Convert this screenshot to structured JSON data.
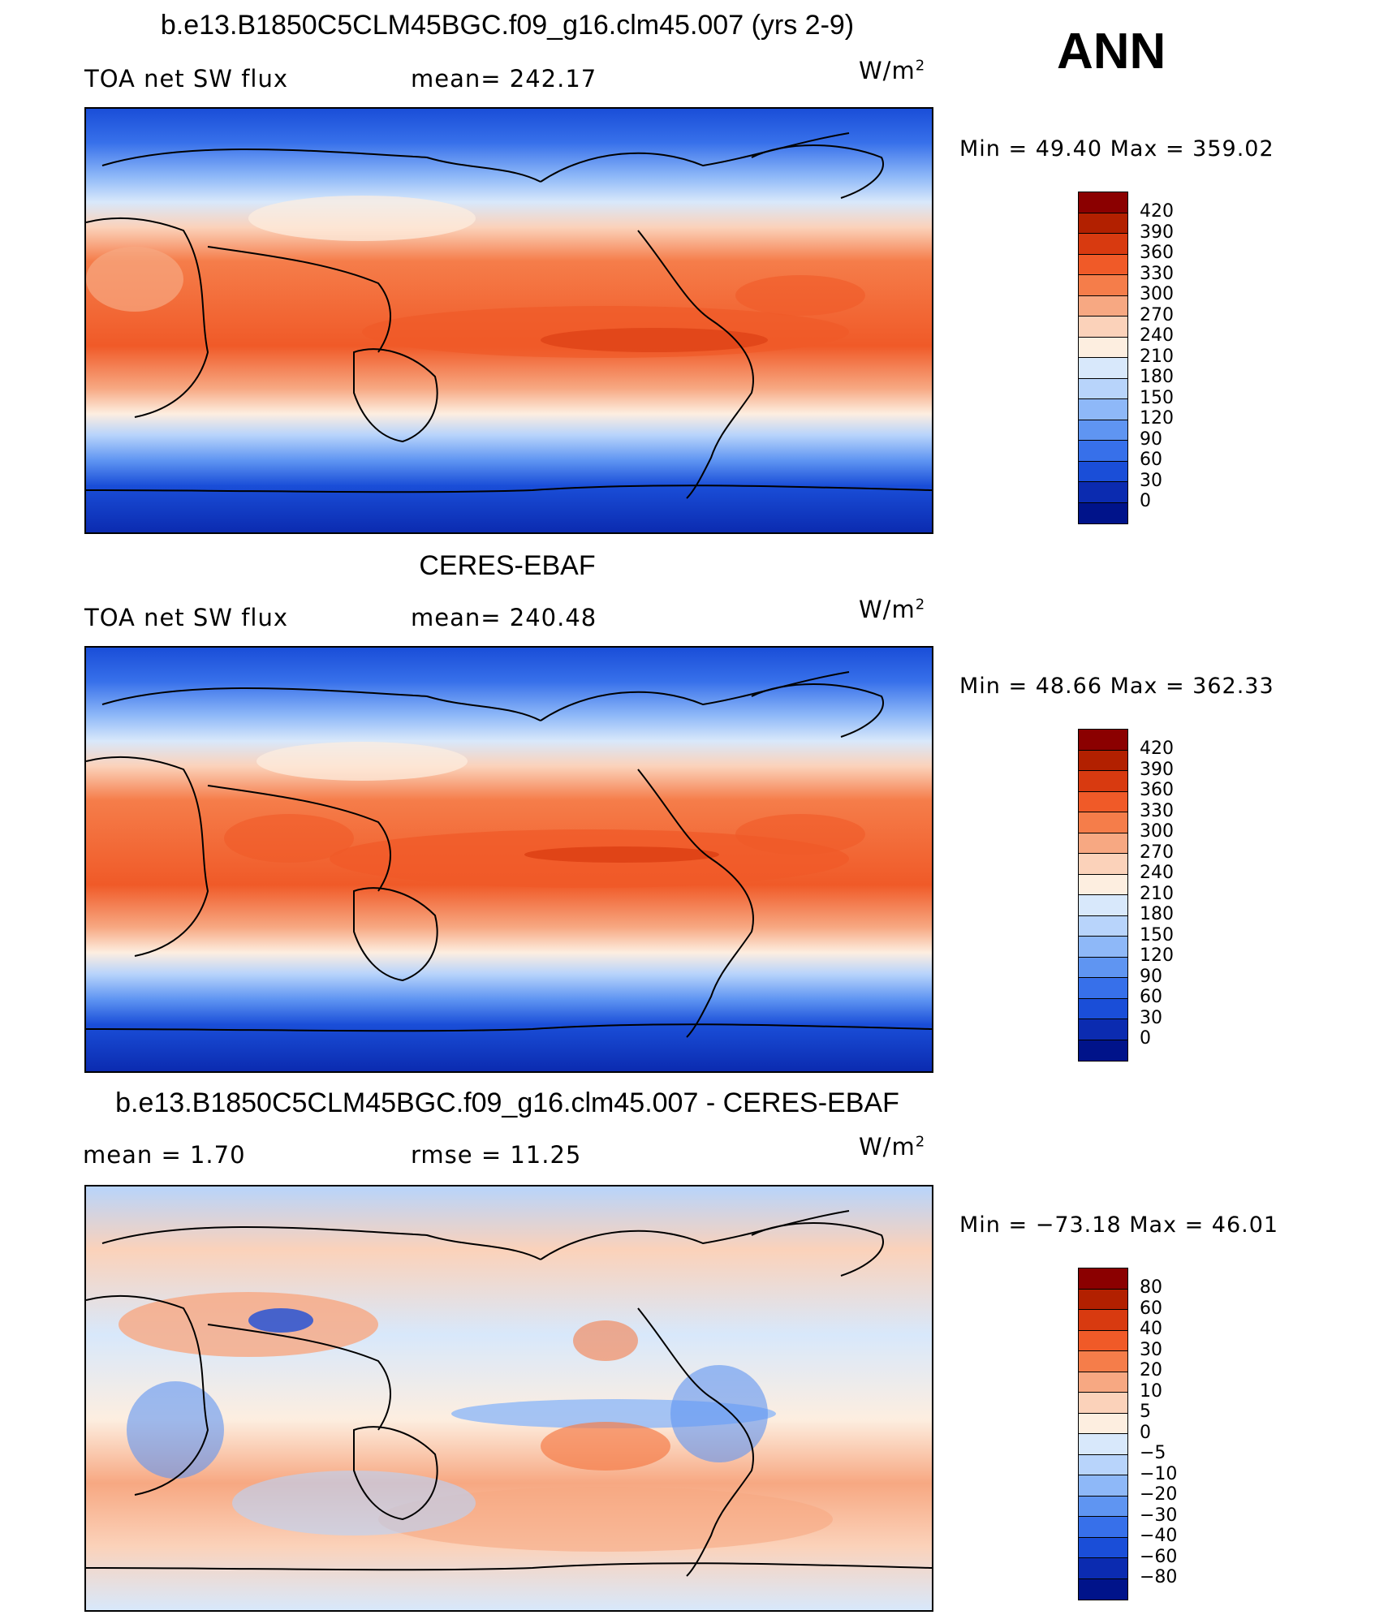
{
  "season": "ANN",
  "panels": [
    {
      "title": "b.e13.B1850C5CLM45BGC.f09_g16.clm45.007 (yrs 2-9)",
      "left_label": "TOA net SW flux",
      "stat_label": "mean= 242.17",
      "units": "W/m",
      "units_exp": "2",
      "minmax": "Min =   49.40 Max = 359.02",
      "colorbar_labels": [
        "420",
        "390",
        "360",
        "330",
        "300",
        "270",
        "240",
        "210",
        "180",
        "150",
        "120",
        "90",
        "60",
        "30",
        "0"
      ]
    },
    {
      "title": "CERES-EBAF",
      "left_label": "TOA net SW flux",
      "stat_label": "mean= 240.48",
      "units": "W/m",
      "units_exp": "2",
      "minmax": "Min =   48.66 Max = 362.33",
      "colorbar_labels": [
        "420",
        "390",
        "360",
        "330",
        "300",
        "270",
        "240",
        "210",
        "180",
        "150",
        "120",
        "90",
        "60",
        "30",
        "0"
      ]
    },
    {
      "title": "b.e13.B1850C5CLM45BGC.f09_g16.clm45.007 - CERES-EBAF",
      "left_label": "mean =    1.70",
      "stat_label": "rmse =   11.25",
      "units": "W/m",
      "units_exp": "2",
      "minmax": "Min = −73.18 Max =   46.01",
      "colorbar_labels": [
        "80",
        "60",
        "40",
        "30",
        "20",
        "10",
        "5",
        "0",
        "−5",
        "−10",
        "−20",
        "−30",
        "−40",
        "−60",
        "−80"
      ]
    }
  ],
  "colors": {
    "scale": [
      "#8b0000",
      "#b22000",
      "#d83a10",
      "#f05a28",
      "#f57d4a",
      "#f7a882",
      "#fbd2ba",
      "#fdeee0",
      "#d8e8fb",
      "#b8d4fb",
      "#8eb8f8",
      "#5f95f2",
      "#3770ea",
      "#1a4ed8",
      "#0b2bb0",
      "#00138a"
    ],
    "ocean_deep": "#0b2bb0",
    "coast": "#000000"
  }
}
